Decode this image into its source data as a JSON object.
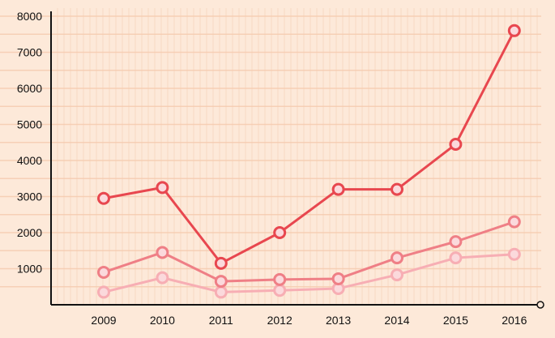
{
  "chart_data": {
    "type": "line",
    "title": "",
    "xlabel": "",
    "ylabel": "",
    "categories": [
      "2009",
      "2010",
      "2011",
      "2012",
      "2013",
      "2014",
      "2015",
      "2016"
    ],
    "ylim": [
      0,
      8000
    ],
    "yticks": [
      1000,
      2000,
      3000,
      4000,
      5000,
      6000,
      7000,
      8000
    ],
    "grid": true,
    "legend": "none",
    "series": [
      {
        "color": "#e8474f",
        "values": [
          2950,
          3250,
          1150,
          2000,
          3200,
          3200,
          4450,
          7600
        ]
      },
      {
        "color": "#ef7f86",
        "values": [
          900,
          1450,
          650,
          700,
          720,
          1300,
          1750,
          2300
        ]
      },
      {
        "color": "#f7aeb4",
        "values": [
          350,
          750,
          350,
          400,
          450,
          830,
          1300,
          1400
        ]
      }
    ],
    "colors": {
      "background": "#fde9d9",
      "grid": "#f5ccb0",
      "axis": "#111111"
    }
  }
}
